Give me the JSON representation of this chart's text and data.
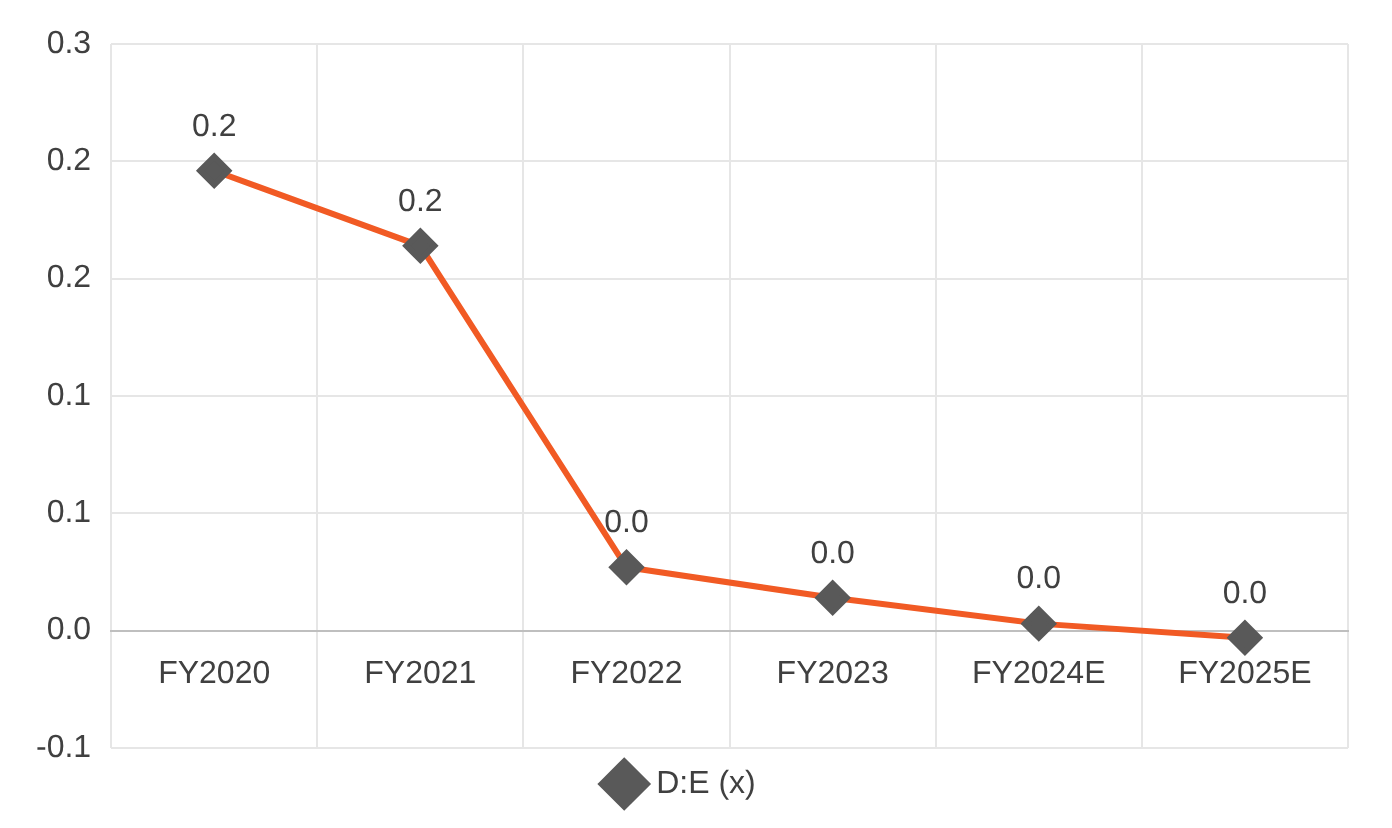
{
  "chart_data": {
    "type": "line",
    "categories": [
      "FY2020",
      "FY2021",
      "FY2022",
      "FY2023",
      "FY2024E",
      "FY2025E"
    ],
    "series": [
      {
        "name": "D:E (x)",
        "color": "#f15a24",
        "values": [
          0.196,
          0.164,
          0.027,
          0.014,
          0.003,
          -0.003
        ],
        "value_labels": [
          "0.2",
          "0.2",
          "0.0",
          "0.0",
          "0.0",
          "0.0"
        ]
      }
    ],
    "ylim": [
      -0.05,
      0.25
    ],
    "yticks": [
      {
        "value": -0.05,
        "label": "-0.1"
      },
      {
        "value": 0,
        "label": "0.0"
      },
      {
        "value": 0.05,
        "label": "0.1"
      },
      {
        "value": 0.1,
        "label": "0.1"
      },
      {
        "value": 0.15,
        "label": "0.2"
      },
      {
        "value": 0.2,
        "label": "0.2"
      },
      {
        "value": 0.25,
        "label": "0.3"
      }
    ],
    "grid": true,
    "legend": "bottom",
    "marker": "diamond",
    "line_style": "solid"
  }
}
